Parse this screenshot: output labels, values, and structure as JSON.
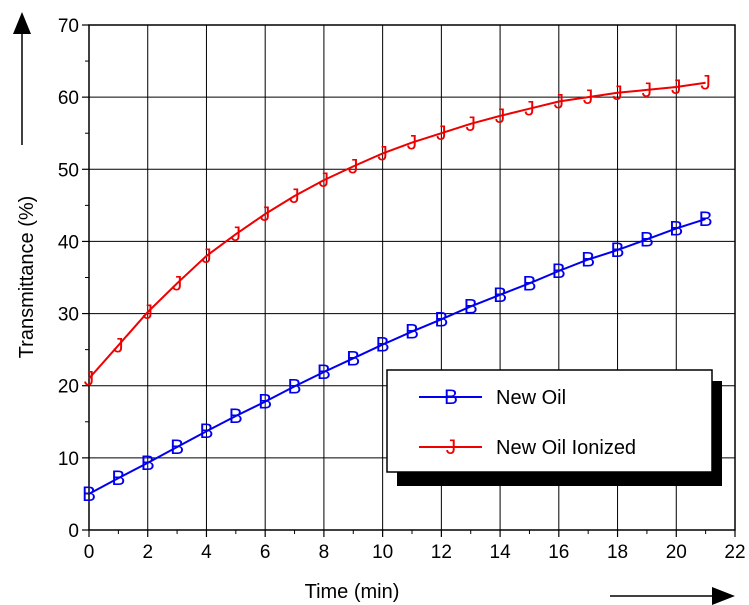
{
  "chart_data": {
    "type": "line",
    "title": "",
    "xlabel": "Time (min)",
    "ylabel": "Transmittance (%)",
    "xlim": [
      0,
      22
    ],
    "ylim": [
      0,
      70
    ],
    "x_ticks": [
      0,
      2,
      4,
      6,
      8,
      10,
      12,
      14,
      16,
      18,
      20,
      22
    ],
    "y_ticks": [
      0,
      10,
      20,
      30,
      40,
      50,
      60,
      70
    ],
    "grid": true,
    "legend_position": "bottom-right",
    "series": [
      {
        "name": "New Oil",
        "marker": "B",
        "color": "#0000ee",
        "x": [
          0,
          1,
          2,
          3,
          4,
          5,
          6,
          7,
          8,
          9,
          10,
          11,
          12,
          13,
          14,
          15,
          16,
          17,
          18,
          19,
          20,
          21
        ],
        "y": [
          5,
          7.2,
          9.3,
          11.5,
          13.7,
          15.8,
          17.8,
          19.9,
          21.9,
          23.8,
          25.7,
          27.5,
          29.2,
          31,
          32.6,
          34.2,
          35.9,
          37.5,
          38.8,
          40.3,
          41.8,
          43.1
        ]
      },
      {
        "name": "New Oil Ionized",
        "marker": "J",
        "color": "#ee0000",
        "x": [
          0,
          1,
          2,
          3,
          4,
          5,
          6,
          7,
          8,
          9,
          10,
          11,
          12,
          13,
          14,
          15,
          16,
          17,
          18,
          19,
          20,
          21
        ],
        "y": [
          21,
          25.6,
          30.2,
          34.2,
          38,
          41,
          43.8,
          46.3,
          48.5,
          50.4,
          52.2,
          53.7,
          55,
          56.3,
          57.4,
          58.4,
          59.4,
          60,
          60.6,
          61,
          61.4,
          62
        ]
      }
    ]
  }
}
